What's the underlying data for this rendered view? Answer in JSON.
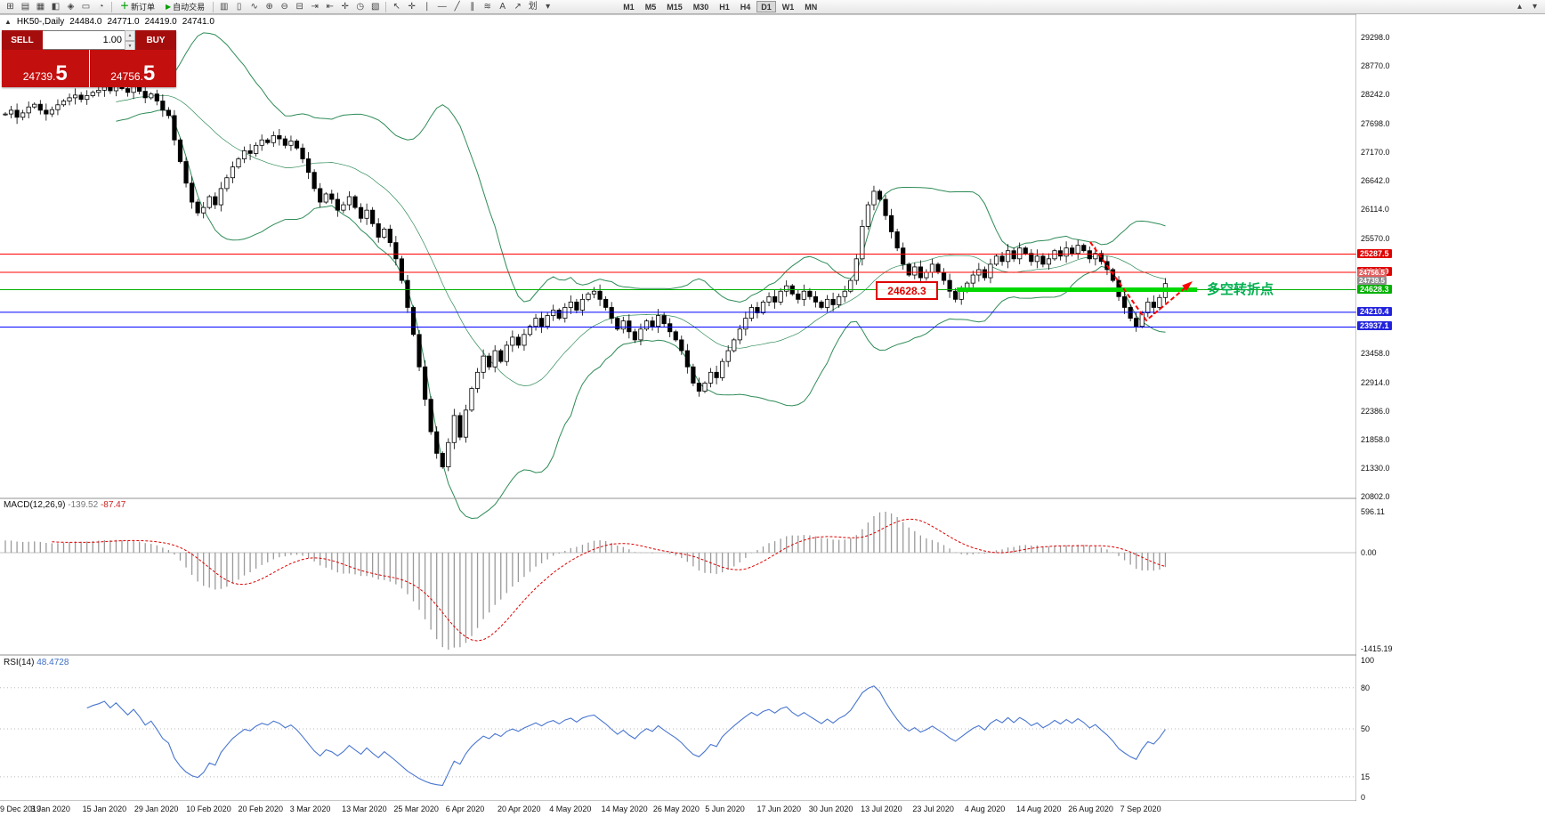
{
  "toolbar": {
    "system_icons": [
      {
        "name": "new-chart-icon",
        "glyph": "⊞"
      },
      {
        "name": "profiles-icon",
        "glyph": "▤"
      },
      {
        "name": "market-watch-icon",
        "glyph": "▦"
      },
      {
        "name": "data-window-icon",
        "glyph": "◧"
      },
      {
        "name": "navigator-icon",
        "glyph": "◈"
      },
      {
        "name": "terminal-icon",
        "glyph": "▭"
      },
      {
        "name": "strategy-tester-icon",
        "glyph": "◔"
      }
    ],
    "new_order_label": "新订单",
    "autotrading_label": "自动交易",
    "chart_icons": [
      {
        "name": "bar-chart-icon",
        "glyph": "▥"
      },
      {
        "name": "candlestick-icon",
        "glyph": "▯"
      },
      {
        "name": "line-chart-icon",
        "glyph": "∿"
      },
      {
        "name": "zoom-in-icon",
        "glyph": "⊕"
      },
      {
        "name": "zoom-out-icon",
        "glyph": "⊖"
      },
      {
        "name": "tile-windows-icon",
        "glyph": "⊟"
      },
      {
        "name": "auto-scroll-icon",
        "glyph": "⇥"
      },
      {
        "name": "chart-shift-icon",
        "glyph": "⇤"
      },
      {
        "name": "indicators-icon",
        "glyph": "✛"
      },
      {
        "name": "periods-icon",
        "glyph": "◷"
      },
      {
        "name": "templates-icon",
        "glyph": "▧"
      }
    ],
    "drawing_icons": [
      {
        "name": "cursor-icon",
        "glyph": "↖"
      },
      {
        "name": "crosshair-icon",
        "glyph": "✛"
      },
      {
        "name": "vertical-line-icon",
        "glyph": "∣"
      },
      {
        "name": "horizontal-line-icon",
        "glyph": "―"
      },
      {
        "name": "trendline-icon",
        "glyph": "╱"
      },
      {
        "name": "channel-icon",
        "glyph": "∥"
      },
      {
        "name": "fibonacci-icon",
        "glyph": "≋"
      },
      {
        "name": "text-icon",
        "glyph": "A"
      },
      {
        "name": "arrow-tool-icon",
        "glyph": "↗"
      },
      {
        "name": "draw-tool-icon",
        "glyph": "划"
      },
      {
        "name": "dropdown-caret-icon",
        "glyph": "▾"
      }
    ],
    "timeframes": [
      "M1",
      "M5",
      "M15",
      "M30",
      "H1",
      "H4",
      "D1",
      "W1",
      "MN"
    ],
    "active_timeframe": "D1",
    "right_icons": [
      {
        "name": "scroll-up-icon",
        "glyph": "▴"
      },
      {
        "name": "scroll-down-icon",
        "glyph": "▾"
      }
    ]
  },
  "trade_panel": {
    "sell_label": "SELL",
    "buy_label": "BUY",
    "volume": "1.00",
    "sell_price_small": "24739.",
    "sell_price_big": "5",
    "buy_price_small": "24756.",
    "buy_price_big": "5"
  },
  "chart_header": {
    "symbol": "HK50-,Daily",
    "open": "24484.0",
    "high": "24771.0",
    "low": "24419.0",
    "close": "24741.0"
  },
  "annotations": {
    "pivot_price_label": "24628.3",
    "turning_point_label": "多空转折点",
    "arrow_color": "#ff0000",
    "pivot_segment_color": "#00d800"
  },
  "indicators": {
    "macd_name": "MACD(12,26,9)",
    "macd_value_main": "-139.52",
    "macd_value_signal": "-87.47",
    "macd_axis": {
      "max": "596.11",
      "zero": "0.00",
      "min": "-1415.19"
    },
    "rsi_name": "RSI(14)",
    "rsi_value": "48.4728",
    "rsi_axis": [
      {
        "label": "100",
        "value": 100
      },
      {
        "label": "80",
        "value": 80
      },
      {
        "label": "50",
        "value": 50
      },
      {
        "label": "15",
        "value": 15
      },
      {
        "label": "0",
        "value": 0
      }
    ],
    "rsi_levels": [
      80,
      50,
      15
    ]
  },
  "price_axis": {
    "regular": [
      {
        "label": "29298.0",
        "price": 29298
      },
      {
        "label": "28770.0",
        "price": 28770
      },
      {
        "label": "28242.0",
        "price": 28242
      },
      {
        "label": "27698.0",
        "price": 27698
      },
      {
        "label": "27170.0",
        "price": 27170
      },
      {
        "label": "26642.0",
        "price": 26642
      },
      {
        "label": "26114.0",
        "price": 26114
      },
      {
        "label": "25570.0",
        "price": 25570
      },
      {
        "label": "23458.0",
        "price": 23458
      },
      {
        "label": "22914.0",
        "price": 22914
      },
      {
        "label": "22386.0",
        "price": 22386
      },
      {
        "label": "21858.0",
        "price": 21858
      },
      {
        "label": "21330.0",
        "price": 21330
      },
      {
        "label": "20802.0",
        "price": 20802
      }
    ],
    "special_labels": [
      {
        "text": "25287.5",
        "price": 25287.5,
        "bg": "#e00000",
        "tiny": false
      },
      {
        "text": "24949.9",
        "price": 24949.9,
        "bg": "#e00000",
        "tiny": false
      },
      {
        "text": "24756.5",
        "price": 24756.5,
        "bg": "#e06060",
        "tiny": true
      },
      {
        "text": "24739.5",
        "price": 24739.5,
        "bg": "#8f8f8f",
        "tiny": true
      },
      {
        "text": "24628.3",
        "price": 24628.3,
        "bg": "#00b000",
        "tiny": false
      },
      {
        "text": "24210.4",
        "price": 24210.4,
        "bg": "#2222dd",
        "tiny": false
      },
      {
        "text": "23937.1",
        "price": 23937.1,
        "bg": "#2222dd",
        "tiny": false
      }
    ]
  },
  "date_axis": {
    "labels": [
      "9 Dec 2019",
      "3 Jan 2020",
      "15 Jan 2020",
      "29 Jan 2020",
      "10 Feb 2020",
      "20 Feb 2020",
      "3 Mar 2020",
      "13 Mar 2020",
      "25 Mar 2020",
      "6 Apr 2020",
      "20 Apr 2020",
      "4 May 2020",
      "14 May 2020",
      "26 May 2020",
      "5 Jun 2020",
      "17 Jun 2020",
      "30 Jun 2020",
      "13 Jul 2020",
      "23 Jul 2020",
      "4 Aug 2020",
      "14 Aug 2020",
      "26 Aug 2020",
      "7 Sep 2020"
    ]
  },
  "chart_data": {
    "type": "candlestick",
    "symbol": "HK50",
    "timeframe": "Daily",
    "bands": "Bollinger(20,2)",
    "band_color": "#2e8b57",
    "level_lines": [
      {
        "price": 25287.5,
        "color": "#ff0000"
      },
      {
        "price": 24949.9,
        "color": "#ff0000"
      },
      {
        "price": 24628.3,
        "color": "#00b000"
      },
      {
        "price": 24210.4,
        "color": "#0000ff"
      },
      {
        "price": 23937.1,
        "color": "#0000ff"
      }
    ],
    "pivot_segment": {
      "price": 24628.3,
      "color": "#00d800"
    },
    "closes": [
      27880,
      27950,
      27820,
      27900,
      28010,
      28060,
      27950,
      27880,
      27960,
      28050,
      28120,
      28180,
      28230,
      28150,
      28220,
      28280,
      28320,
      28380,
      28310,
      28420,
      28350,
      28280,
      28390,
      28300,
      28180,
      28250,
      28120,
      27950,
      27850,
      27400,
      27000,
      26600,
      26250,
      26050,
      26150,
      26350,
      26200,
      26500,
      26700,
      26900,
      27050,
      27200,
      27150,
      27300,
      27400,
      27350,
      27480,
      27420,
      27300,
      27380,
      27250,
      27050,
      26800,
      26500,
      26250,
      26400,
      26300,
      26100,
      26200,
      26350,
      26150,
      25950,
      26100,
      25850,
      25600,
      25750,
      25500,
      25200,
      24800,
      24300,
      23800,
      23200,
      22600,
      22000,
      21600,
      21350,
      21800,
      22300,
      21900,
      22400,
      22800,
      23100,
      23400,
      23200,
      23500,
      23300,
      23600,
      23750,
      23600,
      23800,
      23950,
      24100,
      23950,
      24150,
      24250,
      24100,
      24300,
      24400,
      24250,
      24450,
      24550,
      24600,
      24450,
      24300,
      24100,
      23900,
      24050,
      23850,
      23700,
      23900,
      24050,
      23950,
      24150,
      24000,
      23850,
      23700,
      23500,
      23200,
      22900,
      22750,
      22900,
      23100,
      23000,
      23300,
      23500,
      23700,
      23900,
      24100,
      24300,
      24200,
      24400,
      24500,
      24400,
      24600,
      24700,
      24550,
      24450,
      24600,
      24500,
      24400,
      24300,
      24450,
      24350,
      24500,
      24600,
      24800,
      25200,
      25800,
      26200,
      26450,
      26300,
      26000,
      25700,
      25400,
      25100,
      24900,
      25050,
      24850,
      24950,
      25100,
      24950,
      24800,
      24600,
      24450,
      24600,
      24750,
      24900,
      25000,
      24850,
      25100,
      25250,
      25150,
      25350,
      25200,
      25400,
      25300,
      25150,
      25250,
      25100,
      25200,
      25350,
      25250,
      25400,
      25300,
      25450,
      25350,
      25200,
      25300,
      25150,
      25000,
      24800,
      24500,
      24300,
      24100,
      23950,
      24200,
      24400,
      24300,
      24484,
      24741
    ]
  }
}
